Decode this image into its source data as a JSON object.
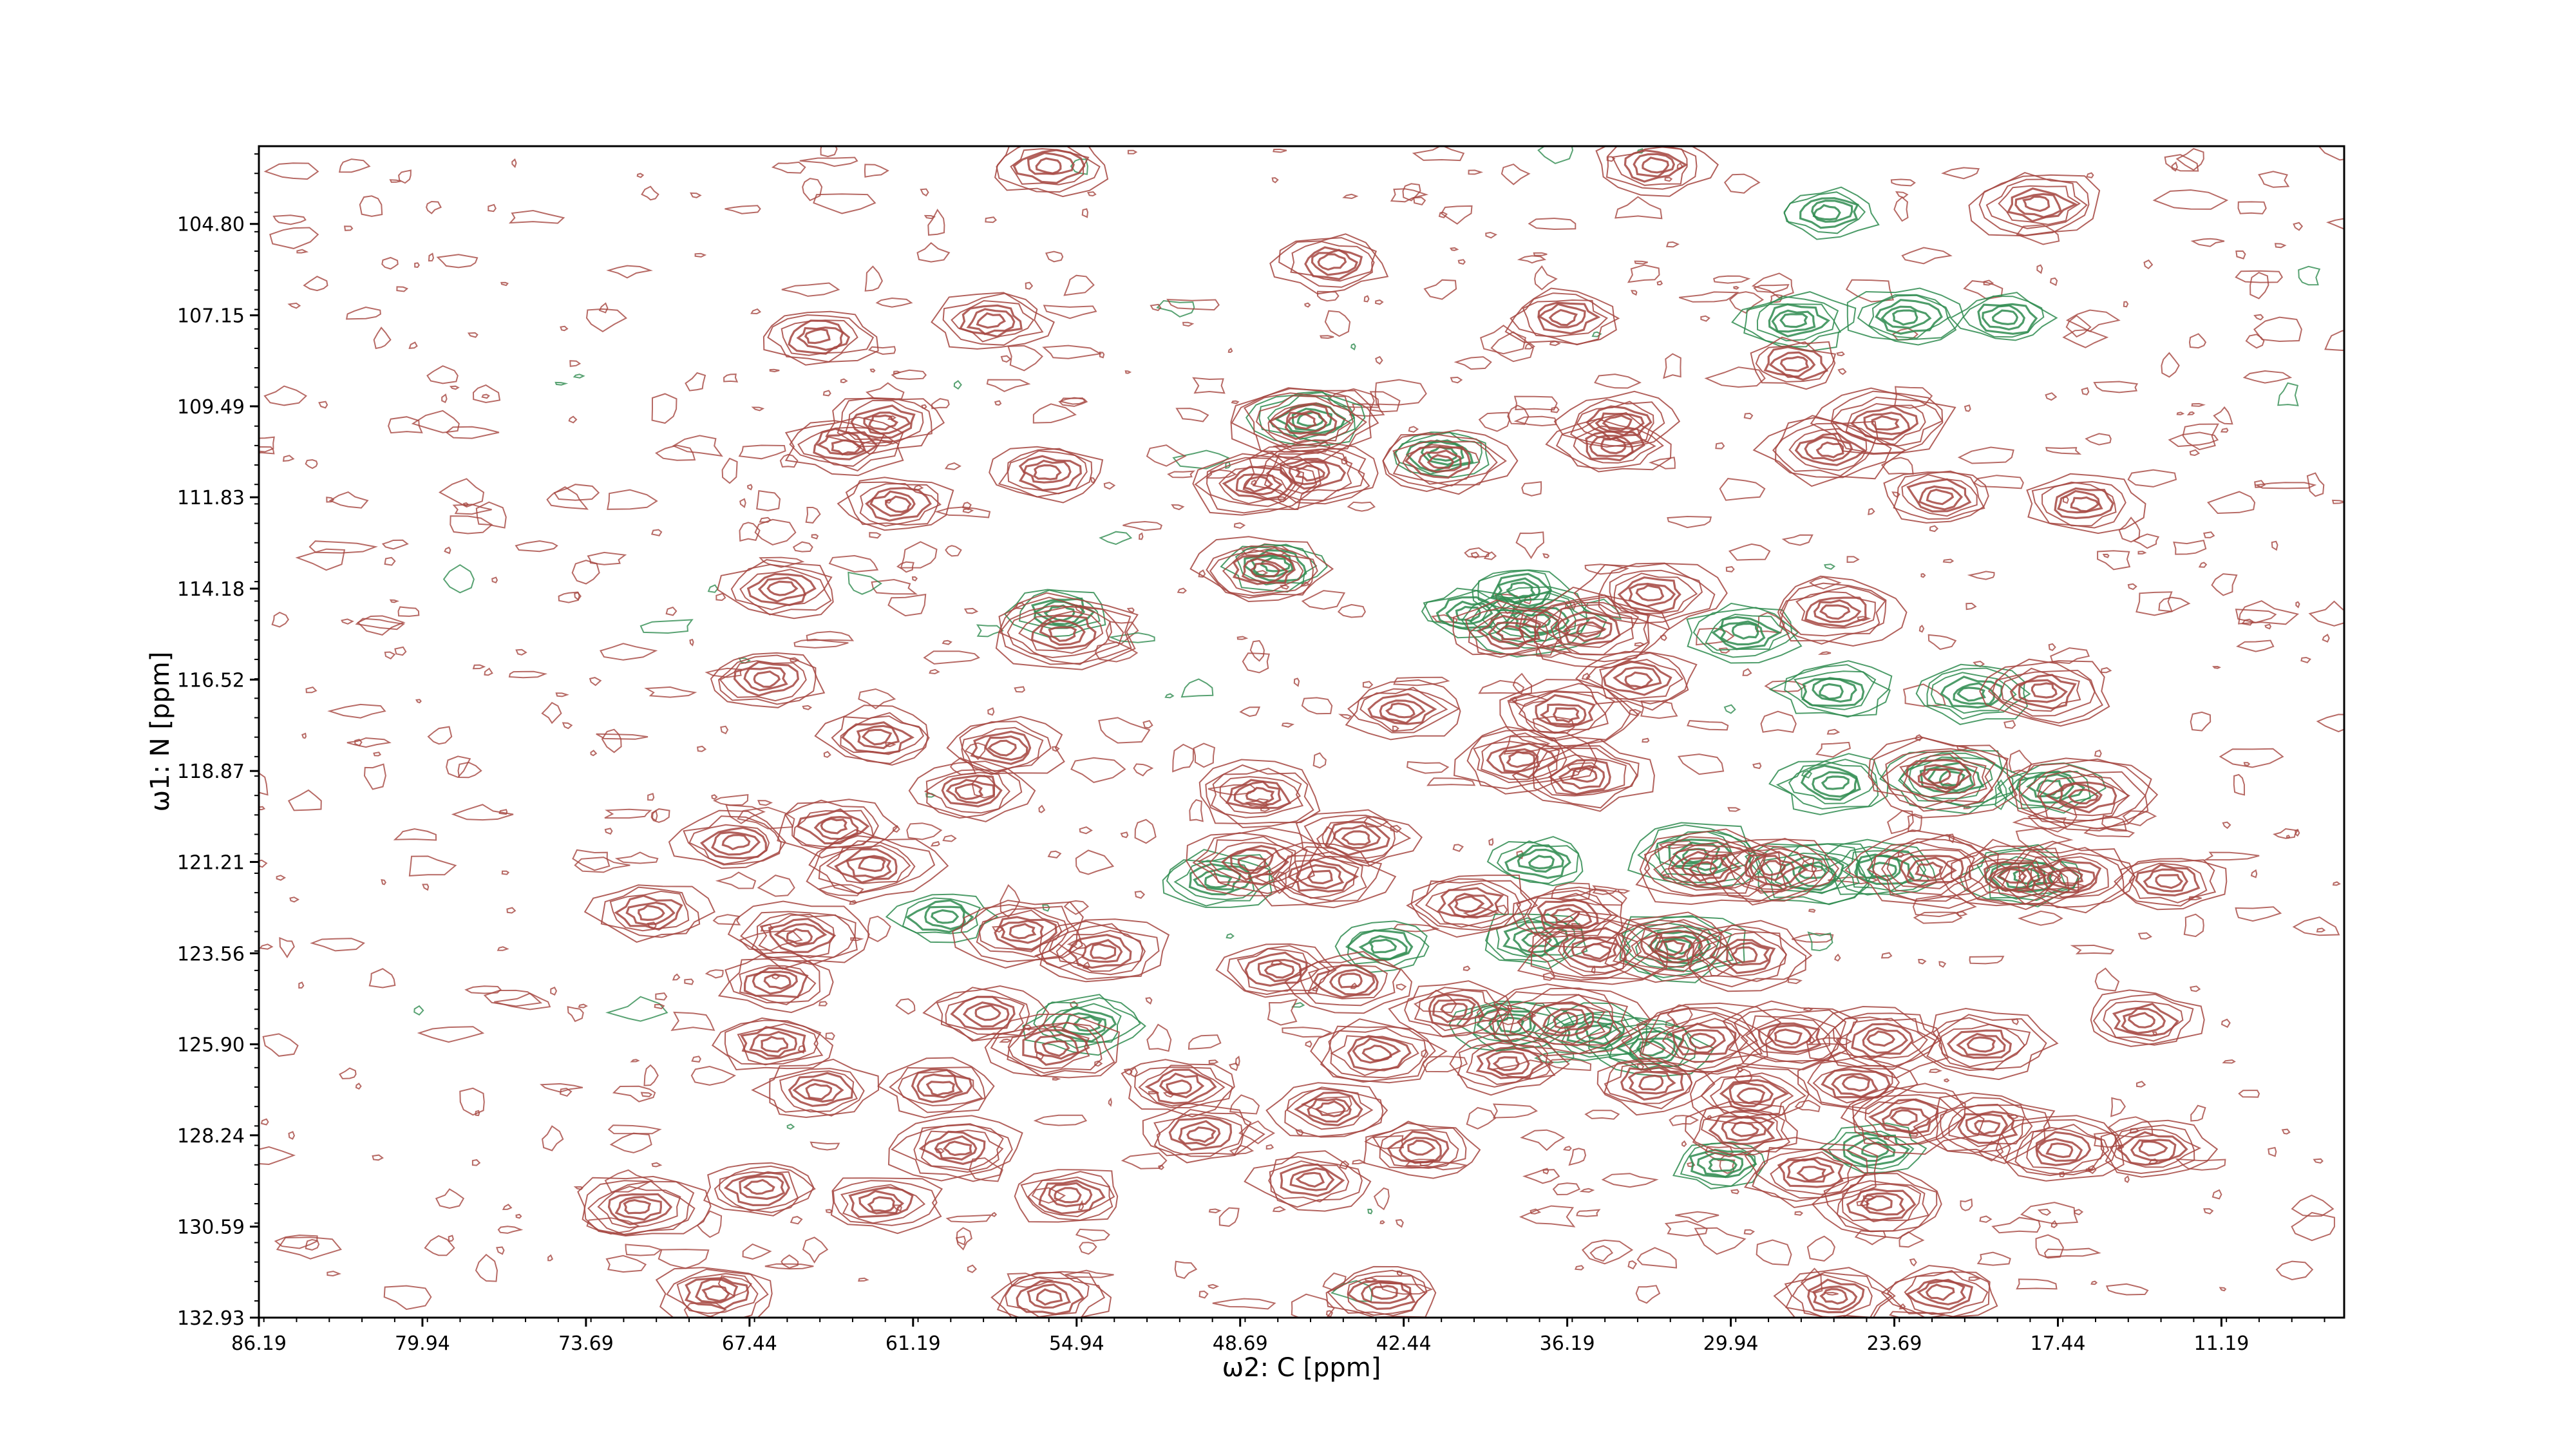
{
  "chart_data": {
    "type": "contour",
    "xlabel": "ω2: C [ppm]",
    "ylabel": "ω1: N [ppm]",
    "x_axis": {
      "reversed": true,
      "lim": [
        86.19,
        6.5
      ],
      "ticks": [
        "86.19",
        "79.94",
        "73.69",
        "67.44",
        "61.19",
        "54.94",
        "48.69",
        "42.44",
        "36.19",
        "29.94",
        "23.69",
        "17.44",
        "11.19"
      ]
    },
    "y_axis": {
      "reversed": true,
      "lim": [
        102.8,
        132.93
      ],
      "ticks": [
        "104.80",
        "107.15",
        "109.49",
        "111.83",
        "114.18",
        "116.52",
        "118.87",
        "121.21",
        "123.56",
        "125.90",
        "128.24",
        "130.59",
        "132.93"
      ]
    },
    "contour_colors": {
      "positive": "#a5453f",
      "negative": "#2e8b4f"
    },
    "positive_peaks": [
      {
        "x": 56.0,
        "y": 103.3,
        "h": 3
      },
      {
        "x": 45.2,
        "y": 105.8,
        "h": 3
      },
      {
        "x": 32.9,
        "y": 103.3,
        "h": 3
      },
      {
        "x": 18.2,
        "y": 104.3,
        "h": 4
      },
      {
        "x": 64.8,
        "y": 107.7,
        "h": 3
      },
      {
        "x": 58.2,
        "y": 107.3,
        "h": 3
      },
      {
        "x": 36.3,
        "y": 107.2,
        "h": 3
      },
      {
        "x": 27.5,
        "y": 108.4,
        "h": 2
      },
      {
        "x": 46.2,
        "y": 109.9,
        "h": 5
      },
      {
        "x": 62.3,
        "y": 109.9,
        "h": 3
      },
      {
        "x": 63.8,
        "y": 110.5,
        "h": 3
      },
      {
        "x": 34.2,
        "y": 109.9,
        "h": 3
      },
      {
        "x": 24.0,
        "y": 109.9,
        "h": 4
      },
      {
        "x": 34.5,
        "y": 110.5,
        "h": 3
      },
      {
        "x": 26.2,
        "y": 110.6,
        "h": 4
      },
      {
        "x": 41.0,
        "y": 110.9,
        "h": 4
      },
      {
        "x": 48.0,
        "y": 111.5,
        "h": 4
      },
      {
        "x": 46.0,
        "y": 111.2,
        "h": 4
      },
      {
        "x": 22.0,
        "y": 111.8,
        "h": 3
      },
      {
        "x": 56.0,
        "y": 111.2,
        "h": 3
      },
      {
        "x": 61.8,
        "y": 112.0,
        "h": 3
      },
      {
        "x": 16.5,
        "y": 112.0,
        "h": 3
      },
      {
        "x": 47.8,
        "y": 113.7,
        "h": 4
      },
      {
        "x": 66.2,
        "y": 114.2,
        "h": 3
      },
      {
        "x": 55.4,
        "y": 115.3,
        "h": 5
      },
      {
        "x": 35.3,
        "y": 115.2,
        "h": 5
      },
      {
        "x": 33.0,
        "y": 114.3,
        "h": 4
      },
      {
        "x": 25.9,
        "y": 114.8,
        "h": 4
      },
      {
        "x": 38.3,
        "y": 115.3,
        "h": 3
      },
      {
        "x": 66.8,
        "y": 116.5,
        "h": 3
      },
      {
        "x": 33.5,
        "y": 116.5,
        "h": 3
      },
      {
        "x": 18.0,
        "y": 116.8,
        "h": 4
      },
      {
        "x": 42.5,
        "y": 117.3,
        "h": 3
      },
      {
        "x": 36.3,
        "y": 117.4,
        "h": 4
      },
      {
        "x": 62.5,
        "y": 118.0,
        "h": 3
      },
      {
        "x": 57.7,
        "y": 118.3,
        "h": 3
      },
      {
        "x": 38.0,
        "y": 118.6,
        "h": 4
      },
      {
        "x": 35.5,
        "y": 119.0,
        "h": 4
      },
      {
        "x": 22.0,
        "y": 119.0,
        "h": 5
      },
      {
        "x": 16.5,
        "y": 119.5,
        "h": 5
      },
      {
        "x": 48.0,
        "y": 119.5,
        "h": 4
      },
      {
        "x": 59.0,
        "y": 119.4,
        "h": 3
      },
      {
        "x": 64.2,
        "y": 120.3,
        "h": 3
      },
      {
        "x": 68.0,
        "y": 120.7,
        "h": 3
      },
      {
        "x": 62.8,
        "y": 121.3,
        "h": 4
      },
      {
        "x": 48.2,
        "y": 121.2,
        "h": 4
      },
      {
        "x": 44.3,
        "y": 120.6,
        "h": 3
      },
      {
        "x": 45.6,
        "y": 121.6,
        "h": 4
      },
      {
        "x": 30.9,
        "y": 121.4,
        "h": 5
      },
      {
        "x": 28.4,
        "y": 121.4,
        "h": 4
      },
      {
        "x": 22.3,
        "y": 121.4,
        "h": 5
      },
      {
        "x": 19.2,
        "y": 121.6,
        "h": 4
      },
      {
        "x": 17.0,
        "y": 121.6,
        "h": 4
      },
      {
        "x": 13.2,
        "y": 121.7,
        "h": 3
      },
      {
        "x": 39.9,
        "y": 122.3,
        "h": 4
      },
      {
        "x": 36.2,
        "y": 122.6,
        "h": 3
      },
      {
        "x": 71.2,
        "y": 122.5,
        "h": 3
      },
      {
        "x": 65.5,
        "y": 123.1,
        "h": 4
      },
      {
        "x": 57.0,
        "y": 123.0,
        "h": 4
      },
      {
        "x": 54.0,
        "y": 123.5,
        "h": 4
      },
      {
        "x": 35.1,
        "y": 123.5,
        "h": 5
      },
      {
        "x": 32.2,
        "y": 123.4,
        "h": 4
      },
      {
        "x": 29.4,
        "y": 123.6,
        "h": 4
      },
      {
        "x": 47.2,
        "y": 124.0,
        "h": 3
      },
      {
        "x": 44.5,
        "y": 124.3,
        "h": 3
      },
      {
        "x": 66.4,
        "y": 124.3,
        "h": 3
      },
      {
        "x": 58.4,
        "y": 125.1,
        "h": 3
      },
      {
        "x": 40.5,
        "y": 125.0,
        "h": 3
      },
      {
        "x": 36.3,
        "y": 125.3,
        "h": 5
      },
      {
        "x": 31.0,
        "y": 125.8,
        "h": 5
      },
      {
        "x": 27.7,
        "y": 125.7,
        "h": 4
      },
      {
        "x": 24.2,
        "y": 125.8,
        "h": 4
      },
      {
        "x": 20.4,
        "y": 125.9,
        "h": 4
      },
      {
        "x": 14.2,
        "y": 125.3,
        "h": 3
      },
      {
        "x": 66.5,
        "y": 125.9,
        "h": 3
      },
      {
        "x": 55.8,
        "y": 126.0,
        "h": 4
      },
      {
        "x": 43.5,
        "y": 126.1,
        "h": 4
      },
      {
        "x": 38.5,
        "y": 126.4,
        "h": 3
      },
      {
        "x": 33.0,
        "y": 126.9,
        "h": 3
      },
      {
        "x": 29.2,
        "y": 127.2,
        "h": 3
      },
      {
        "x": 25.2,
        "y": 126.9,
        "h": 3
      },
      {
        "x": 64.8,
        "y": 127.1,
        "h": 3
      },
      {
        "x": 60.2,
        "y": 127.0,
        "h": 3
      },
      {
        "x": 51.0,
        "y": 127.0,
        "h": 3
      },
      {
        "x": 45.2,
        "y": 127.6,
        "h": 3
      },
      {
        "x": 23.2,
        "y": 127.8,
        "h": 4
      },
      {
        "x": 20.2,
        "y": 128.0,
        "h": 4
      },
      {
        "x": 29.5,
        "y": 128.1,
        "h": 3
      },
      {
        "x": 59.5,
        "y": 128.6,
        "h": 4
      },
      {
        "x": 50.2,
        "y": 128.2,
        "h": 3
      },
      {
        "x": 17.3,
        "y": 128.6,
        "h": 4
      },
      {
        "x": 13.8,
        "y": 128.6,
        "h": 3
      },
      {
        "x": 41.8,
        "y": 128.6,
        "h": 3
      },
      {
        "x": 26.9,
        "y": 129.2,
        "h": 4
      },
      {
        "x": 55.2,
        "y": 129.8,
        "h": 3
      },
      {
        "x": 62.4,
        "y": 130.0,
        "h": 3
      },
      {
        "x": 46.0,
        "y": 129.4,
        "h": 3
      },
      {
        "x": 24.2,
        "y": 130.0,
        "h": 4
      },
      {
        "x": 71.7,
        "y": 130.1,
        "h": 4
      },
      {
        "x": 67.0,
        "y": 129.6,
        "h": 3
      },
      {
        "x": 68.7,
        "y": 132.3,
        "h": 3
      },
      {
        "x": 56.0,
        "y": 132.4,
        "h": 3
      },
      {
        "x": 43.2,
        "y": 132.3,
        "h": 3
      },
      {
        "x": 26.0,
        "y": 132.4,
        "h": 3
      },
      {
        "x": 21.9,
        "y": 132.3,
        "h": 3
      }
    ],
    "negative_peaks": [
      {
        "x": 46.0,
        "y": 109.8,
        "h": 3
      },
      {
        "x": 41.0,
        "y": 110.7,
        "h": 2
      },
      {
        "x": 47.4,
        "y": 113.6,
        "h": 2
      },
      {
        "x": 40.0,
        "y": 114.8,
        "h": 2
      },
      {
        "x": 37.4,
        "y": 115.0,
        "h": 4
      },
      {
        "x": 38.0,
        "y": 114.2,
        "h": 2
      },
      {
        "x": 29.4,
        "y": 115.3,
        "h": 3
      },
      {
        "x": 55.6,
        "y": 114.8,
        "h": 2
      },
      {
        "x": 26.0,
        "y": 116.8,
        "h": 3
      },
      {
        "x": 20.7,
        "y": 116.9,
        "h": 3
      },
      {
        "x": 26.0,
        "y": 119.2,
        "h": 3
      },
      {
        "x": 21.5,
        "y": 119.1,
        "h": 4
      },
      {
        "x": 17.7,
        "y": 119.3,
        "h": 2
      },
      {
        "x": 31.2,
        "y": 121.0,
        "h": 4
      },
      {
        "x": 37.2,
        "y": 121.2,
        "h": 2
      },
      {
        "x": 26.8,
        "y": 121.5,
        "h": 4
      },
      {
        "x": 24.2,
        "y": 121.4,
        "h": 3
      },
      {
        "x": 18.7,
        "y": 121.6,
        "h": 3
      },
      {
        "x": 49.5,
        "y": 121.7,
        "h": 3
      },
      {
        "x": 60.0,
        "y": 122.6,
        "h": 2
      },
      {
        "x": 43.2,
        "y": 123.4,
        "h": 2
      },
      {
        "x": 37.4,
        "y": 123.2,
        "h": 3
      },
      {
        "x": 31.9,
        "y": 123.4,
        "h": 4
      },
      {
        "x": 38.4,
        "y": 125.4,
        "h": 3
      },
      {
        "x": 35.0,
        "y": 125.6,
        "h": 3
      },
      {
        "x": 33.0,
        "y": 126.0,
        "h": 3
      },
      {
        "x": 54.6,
        "y": 125.4,
        "h": 3
      },
      {
        "x": 24.5,
        "y": 128.6,
        "h": 2
      },
      {
        "x": 30.3,
        "y": 129.0,
        "h": 2
      },
      {
        "x": 27.5,
        "y": 107.3,
        "h": 3
      },
      {
        "x": 23.2,
        "y": 107.2,
        "h": 3
      },
      {
        "x": 19.5,
        "y": 107.2,
        "h": 2
      },
      {
        "x": 26.2,
        "y": 104.5,
        "h": 2
      }
    ],
    "noise_contours": "many single-level noise contours spread across the full spectrum"
  }
}
